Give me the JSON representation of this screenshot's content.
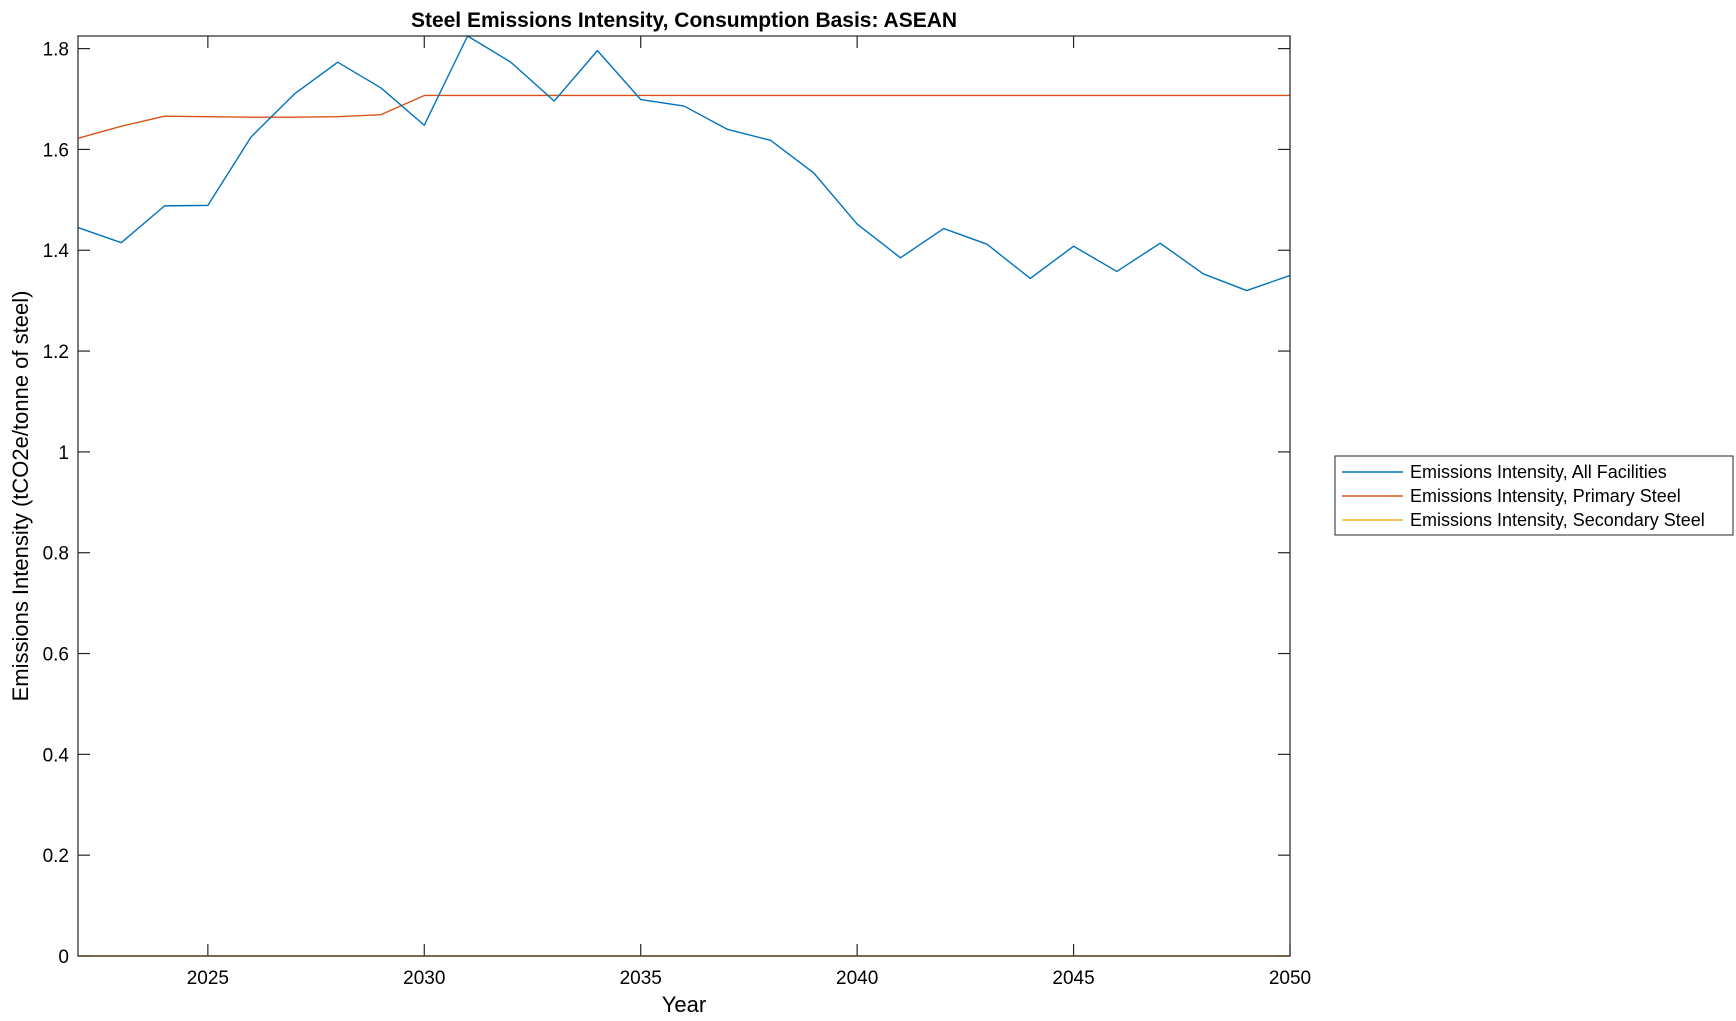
{
  "chart_data": {
    "type": "line",
    "title": "Steel Emissions Intensity, Consumption Basis: ASEAN",
    "xlabel": "Year",
    "ylabel": "Emissions Intensity (tCO2e/tonne of steel)",
    "xlim": [
      2022,
      2050
    ],
    "ylim": [
      0,
      1.825
    ],
    "xticks": [
      2025,
      2030,
      2035,
      2040,
      2045,
      2050
    ],
    "yticks": [
      0,
      0.2,
      0.4,
      0.6,
      0.8,
      1,
      1.2,
      1.4,
      1.6,
      1.8
    ],
    "ytick_labels": [
      "0",
      "0.2",
      "0.4",
      "0.6",
      "0.8",
      "1",
      "1.2",
      "1.4",
      "1.6",
      "1.8"
    ],
    "grid": false,
    "legend_position": "outside-right",
    "x": [
      2022,
      2023,
      2024,
      2025,
      2026,
      2027,
      2028,
      2029,
      2030,
      2031,
      2032,
      2033,
      2034,
      2035,
      2036,
      2037,
      2038,
      2039,
      2040,
      2041,
      2042,
      2043,
      2044,
      2045,
      2046,
      2047,
      2048,
      2049,
      2050
    ],
    "series": [
      {
        "name": "Emissions Intensity, All Facilities",
        "color": "#0072bd",
        "values": [
          1.445,
          1.415,
          1.488,
          1.489,
          1.625,
          1.71,
          1.773,
          1.722,
          1.648,
          1.825,
          1.773,
          1.696,
          1.796,
          1.699,
          1.686,
          1.64,
          1.618,
          1.553,
          1.452,
          1.385,
          1.443,
          1.412,
          1.344,
          1.408,
          1.358,
          1.414,
          1.353,
          1.32,
          1.35
        ]
      },
      {
        "name": "Emissions Intensity, Primary Steel",
        "color": "#d95319",
        "values": [
          1.622,
          1.646,
          1.666,
          1.665,
          1.664,
          1.664,
          1.665,
          1.669,
          1.707,
          1.707,
          1.707,
          1.707,
          1.707,
          1.707,
          1.707,
          1.707,
          1.707,
          1.707,
          1.707,
          1.707,
          1.707,
          1.707,
          1.707,
          1.707,
          1.707,
          1.707,
          1.707,
          1.707,
          1.707
        ]
      },
      {
        "name": "Emissions Intensity, Secondary Steel",
        "color": "#edb120",
        "values": [
          0,
          0,
          0,
          0,
          0,
          0,
          0,
          0,
          0,
          0,
          0,
          0,
          0,
          0,
          0,
          0,
          0,
          0,
          0,
          0,
          0,
          0,
          0,
          0,
          0,
          0,
          0,
          0,
          0
        ]
      }
    ]
  }
}
